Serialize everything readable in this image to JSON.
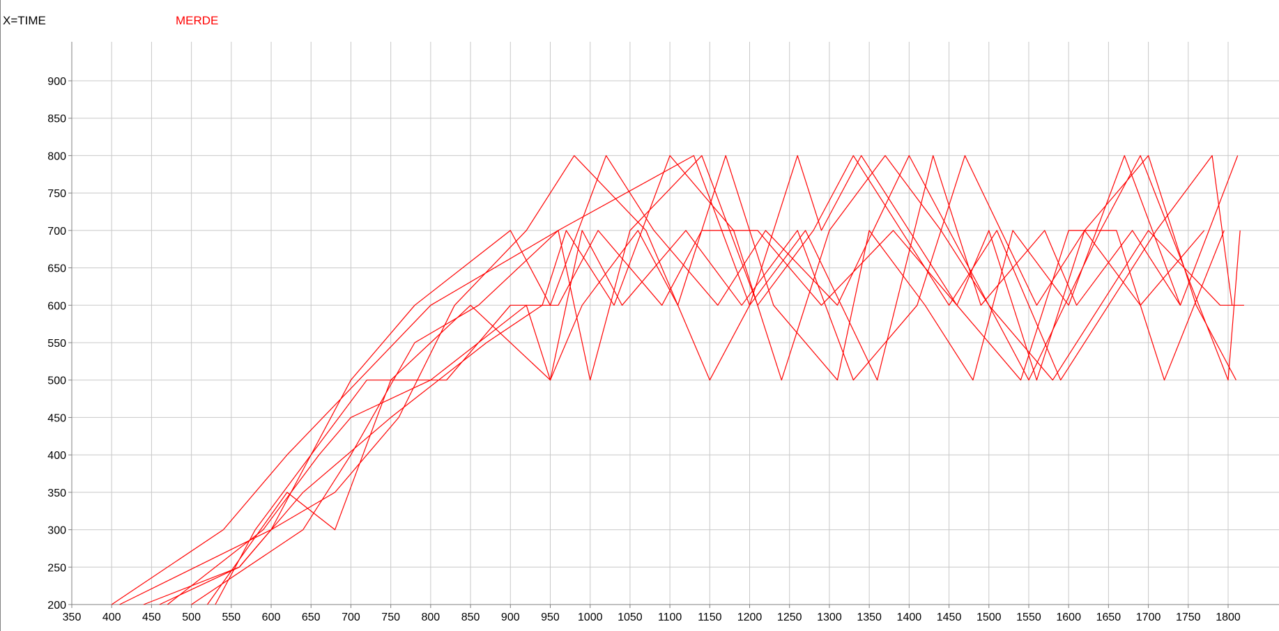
{
  "legend": {
    "xlabel_text": "X=TIME",
    "series_name": "MERDE"
  },
  "colors": {
    "series": "#ff0000",
    "grid": "#c8c8c8",
    "axis": "#808080"
  },
  "chart_data": {
    "type": "line",
    "title": "",
    "xlabel": "X=TIME",
    "ylabel": "",
    "xlim": [
      350,
      1820
    ],
    "ylim": [
      200,
      950
    ],
    "xticks": [
      350,
      400,
      450,
      500,
      550,
      600,
      650,
      700,
      750,
      800,
      850,
      900,
      950,
      1000,
      1050,
      1100,
      1150,
      1200,
      1250,
      1300,
      1350,
      1400,
      1450,
      1500,
      1550,
      1600,
      1650,
      1700,
      1750,
      1800
    ],
    "yticks": [
      200,
      250,
      300,
      350,
      400,
      450,
      500,
      550,
      600,
      650,
      700,
      750,
      800,
      850,
      900
    ],
    "grid": true,
    "legend_position": "top-left",
    "series": [
      {
        "name": "MERDE",
        "x": [
          400,
          540,
          620,
          800,
          960,
          1130,
          1200,
          1260,
          1290,
          1340,
          1460,
          1500,
          1560,
          1620,
          1700,
          1760,
          1810
        ],
        "y": [
          200,
          300,
          400,
          600,
          700,
          800,
          600,
          800,
          700,
          800,
          600,
          700,
          500,
          700,
          800,
          600,
          500
        ]
      },
      {
        "x": [
          410,
          600,
          650,
          700,
          780,
          900,
          950,
          1020,
          1080,
          1160,
          1220,
          1310,
          1400,
          1450,
          1550,
          1640,
          1690,
          1800,
          1815
        ],
        "y": [
          200,
          300,
          400,
          500,
          600,
          700,
          600,
          800,
          700,
          600,
          700,
          600,
          800,
          700,
          500,
          700,
          800,
          500,
          700
        ]
      },
      {
        "x": [
          440,
          560,
          640,
          750,
          870,
          940,
          970,
          1030,
          1100,
          1180,
          1240,
          1300,
          1370,
          1440,
          1500,
          1580,
          1700,
          1790,
          1820
        ],
        "y": [
          200,
          250,
          350,
          450,
          550,
          600,
          700,
          600,
          800,
          700,
          500,
          700,
          800,
          700,
          600,
          500,
          700,
          600,
          600
        ]
      },
      {
        "x": [
          470,
          590,
          660,
          700,
          800,
          920,
          950,
          990,
          1040,
          1120,
          1190,
          1260,
          1330,
          1410,
          1470,
          1560,
          1620,
          1690,
          1770
        ],
        "y": [
          200,
          300,
          400,
          450,
          500,
          600,
          500,
          700,
          600,
          700,
          600,
          700,
          500,
          600,
          800,
          600,
          700,
          600,
          700
        ]
      },
      {
        "x": [
          520,
          620,
          680,
          750,
          850,
          950,
          990,
          1060,
          1110,
          1170,
          1230,
          1310,
          1350,
          1420,
          1480,
          1530,
          1600,
          1670,
          1740,
          1812
        ],
        "y": [
          200,
          350,
          300,
          500,
          600,
          500,
          600,
          700,
          600,
          800,
          600,
          500,
          700,
          600,
          500,
          700,
          600,
          800,
          600,
          800
        ]
      },
      {
        "x": [
          500,
          640,
          700,
          780,
          860,
          960,
          1000,
          1050,
          1140,
          1210,
          1280,
          1330,
          1390,
          1450,
          1510,
          1590,
          1650,
          1710,
          1780,
          1805
        ],
        "y": [
          200,
          300,
          400,
          550,
          600,
          700,
          500,
          700,
          800,
          600,
          700,
          800,
          700,
          600,
          700,
          500,
          600,
          700,
          800,
          600
        ]
      },
      {
        "x": [
          460,
          560,
          600,
          680,
          760,
          830,
          920,
          980,
          1070,
          1150,
          1200,
          1270,
          1360,
          1430,
          1490,
          1570,
          1610,
          1680,
          1740
        ],
        "y": [
          200,
          250,
          300,
          350,
          450,
          600,
          700,
          800,
          700,
          500,
          600,
          700,
          500,
          800,
          600,
          700,
          600,
          700,
          600
        ]
      },
      {
        "x": [
          530,
          580,
          650,
          720,
          820,
          900,
          960,
          1010,
          1090,
          1140,
          1210,
          1290,
          1380,
          1460,
          1540,
          1600,
          1660,
          1720,
          1795
        ],
        "y": [
          200,
          300,
          400,
          500,
          500,
          600,
          600,
          700,
          600,
          700,
          700,
          600,
          700,
          600,
          500,
          700,
          700,
          500,
          700
        ]
      }
    ]
  }
}
